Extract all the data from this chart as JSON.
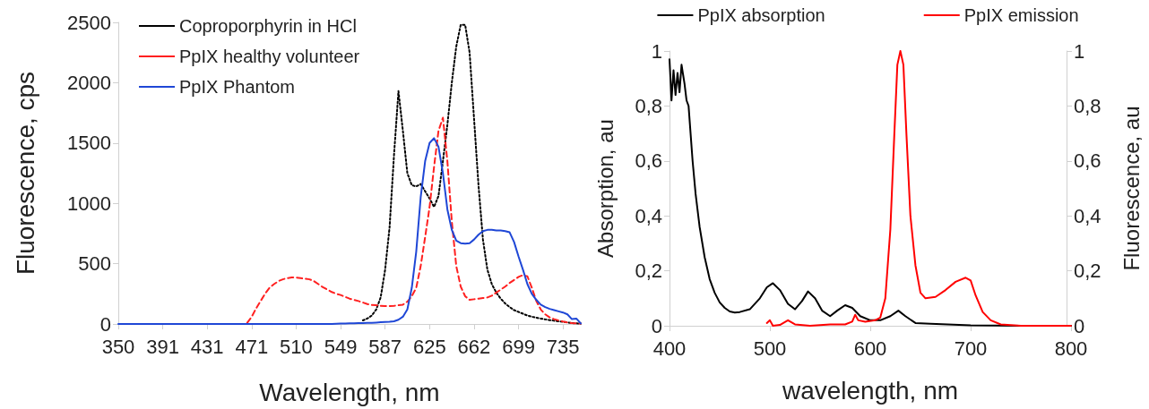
{
  "chart_data": [
    {
      "type": "line",
      "xlabel": "Wavelength, nm",
      "ylabel": "Fluorescence, cps",
      "categories": [
        "350",
        null,
        null,
        null,
        null,
        null,
        null,
        null,
        null,
        null,
        "391",
        null,
        null,
        null,
        null,
        null,
        null,
        null,
        null,
        null,
        "431",
        null,
        null,
        null,
        null,
        null,
        null,
        null,
        null,
        null,
        "471",
        null,
        null,
        null,
        null,
        null,
        null,
        null,
        null,
        null,
        "510",
        null,
        null,
        null,
        null,
        null,
        null,
        null,
        null,
        null,
        "549",
        null,
        null,
        null,
        null,
        null,
        null,
        null,
        null,
        null,
        "587",
        null,
        null,
        null,
        null,
        null,
        null,
        null,
        null,
        null,
        "625",
        null,
        null,
        null,
        null,
        null,
        null,
        null,
        null,
        null,
        "662",
        null,
        null,
        null,
        null,
        null,
        null,
        null,
        null,
        null,
        "699",
        null,
        null,
        null,
        null,
        null,
        null,
        null,
        null,
        null,
        "735",
        null,
        null,
        null,
        null
      ],
      "series": [
        {
          "name": "Coproporphyrin in HCl",
          "color": "#000000",
          "line_style": "dotted",
          "values": [
            null,
            null,
            null,
            null,
            null,
            null,
            null,
            null,
            null,
            null,
            null,
            null,
            null,
            null,
            null,
            null,
            null,
            null,
            null,
            null,
            null,
            null,
            null,
            null,
            null,
            null,
            null,
            null,
            null,
            null,
            null,
            null,
            null,
            null,
            null,
            null,
            null,
            null,
            null,
            null,
            null,
            null,
            null,
            null,
            null,
            null,
            null,
            null,
            null,
            null,
            null,
            null,
            null,
            null,
            null,
            30,
            45,
            70,
            120,
            220,
            450,
            800,
            1400,
            1930,
            1600,
            1250,
            1150,
            1140,
            1160,
            1100,
            1040,
            970,
            1060,
            1350,
            1650,
            2000,
            2300,
            2480,
            2480,
            2250,
            1700,
            1150,
            700,
            450,
            330,
            260,
            210,
            170,
            140,
            115,
            100,
            85,
            70,
            60,
            52,
            45,
            38,
            32,
            27,
            22,
            18,
            13,
            8,
            5,
            3
          ]
        },
        {
          "name": "PpIX healthy volunteer",
          "color": "#ff2020",
          "line_style": "dashed",
          "values": [
            null,
            null,
            null,
            null,
            null,
            null,
            null,
            null,
            null,
            null,
            null,
            null,
            null,
            null,
            null,
            null,
            null,
            null,
            null,
            null,
            null,
            null,
            null,
            null,
            null,
            null,
            null,
            null,
            null,
            10,
            60,
            130,
            190,
            250,
            300,
            330,
            355,
            370,
            380,
            385,
            385,
            380,
            375,
            370,
            355,
            330,
            305,
            285,
            265,
            250,
            240,
            225,
            210,
            200,
            190,
            178,
            165,
            158,
            155,
            150,
            148,
            148,
            150,
            155,
            160,
            185,
            230,
            300,
            480,
            720,
            970,
            1300,
            1600,
            1710,
            1350,
            850,
            480,
            310,
            230,
            200,
            205,
            210,
            215,
            220,
            235,
            260,
            285,
            310,
            340,
            365,
            390,
            405,
            395,
            300,
            190,
            120,
            80,
            55,
            40,
            30,
            20,
            12,
            8,
            5,
            3
          ]
        },
        {
          "name": "PpIX Phantom",
          "color": "#1f47d6",
          "line_style": "solid",
          "values": [
            0,
            0,
            0,
            0,
            0,
            0,
            0,
            0,
            0,
            0,
            0,
            0,
            0,
            0,
            0,
            0,
            0,
            0,
            0,
            0,
            0,
            0,
            0,
            0,
            0,
            0,
            0,
            0,
            0,
            0,
            0,
            0,
            0,
            0,
            0,
            0,
            0,
            0,
            0,
            0,
            0,
            0,
            0,
            0,
            0,
            0,
            0,
            0,
            0,
            2,
            3,
            4,
            5,
            6,
            7,
            8,
            9,
            10,
            12,
            14,
            16,
            18,
            22,
            35,
            60,
            120,
            300,
            600,
            1050,
            1350,
            1500,
            1540,
            1470,
            1250,
            950,
            780,
            690,
            670,
            665,
            670,
            700,
            740,
            770,
            780,
            780,
            775,
            775,
            770,
            760,
            680,
            560,
            450,
            330,
            250,
            200,
            160,
            140,
            125,
            115,
            105,
            95,
            80,
            40,
            45,
            5
          ]
        }
      ],
      "ylim": [
        0,
        2500
      ],
      "yticks": [
        0,
        500,
        1000,
        1500,
        2000,
        2500
      ],
      "grid": false,
      "legend": "top left",
      "marker": "none"
    },
    {
      "type": "line",
      "xlabel": "wavelength, nm",
      "ylabel": "Absorption, au",
      "y2label": "Fluorescence, au",
      "series": [
        {
          "name": "PpIX absorption",
          "color": "#000000",
          "x": [
            400,
            402,
            404,
            406,
            408,
            410,
            412,
            415,
            417,
            419,
            421,
            423,
            426,
            430,
            435,
            440,
            445,
            450,
            455,
            460,
            465,
            470,
            480,
            490,
            497,
            503,
            510,
            518,
            525,
            532,
            538,
            545,
            552,
            560,
            567,
            575,
            582,
            590,
            600,
            610,
            620,
            628,
            635,
            645,
            660,
            700,
            750,
            800
          ],
          "values": [
            0.97,
            0.82,
            0.93,
            0.84,
            0.92,
            0.85,
            0.95,
            0.88,
            0.82,
            0.8,
            0.7,
            0.6,
            0.48,
            0.36,
            0.25,
            0.17,
            0.12,
            0.085,
            0.065,
            0.052,
            0.048,
            0.05,
            0.06,
            0.1,
            0.14,
            0.155,
            0.13,
            0.08,
            0.06,
            0.09,
            0.125,
            0.1,
            0.055,
            0.035,
            0.055,
            0.075,
            0.065,
            0.035,
            0.02,
            0.02,
            0.035,
            0.055,
            0.035,
            0.01,
            0.007,
            0.002,
            0,
            0
          ]
        },
        {
          "name": "PpIX emission",
          "color": "#ff0000",
          "x": [
            497,
            500,
            503,
            510,
            518,
            525,
            540,
            560,
            575,
            582,
            585,
            588,
            595,
            605,
            610,
            615,
            620,
            624,
            627,
            630,
            633,
            636,
            640,
            645,
            650,
            655,
            665,
            675,
            685,
            695,
            700,
            705,
            712,
            720,
            730,
            750,
            800
          ],
          "values": [
            0.01,
            0.02,
            0,
            0.003,
            0.02,
            0.005,
            0,
            0.005,
            0.005,
            0.015,
            0.04,
            0.02,
            0.015,
            0.02,
            0.03,
            0.1,
            0.35,
            0.7,
            0.95,
            1,
            0.95,
            0.7,
            0.4,
            0.22,
            0.12,
            0.1,
            0.105,
            0.13,
            0.16,
            0.175,
            0.165,
            0.11,
            0.05,
            0.02,
            0.005,
            0,
            0
          ]
        }
      ],
      "xlim": [
        400,
        800
      ],
      "xticks": [
        400,
        500,
        600,
        700,
        800
      ],
      "ylim": [
        0,
        1
      ],
      "yticks": [
        0,
        {
          "value": 0.2,
          "label": "0,2"
        },
        {
          "value": 0.4,
          "label": "0,4"
        },
        {
          "value": 0.6,
          "label": "0,6"
        },
        {
          "value": 0.8,
          "label": "0,8"
        },
        1
      ],
      "y2lim": [
        0,
        1
      ],
      "y2ticks": [
        0,
        {
          "value": 0.2,
          "label": "0,2"
        },
        {
          "value": 0.4,
          "label": "0,4"
        },
        {
          "value": 0.6,
          "label": "0,6"
        },
        {
          "value": 0.8,
          "label": "0,8"
        },
        1
      ],
      "grid": false,
      "legend": "top",
      "marker": "none"
    }
  ]
}
